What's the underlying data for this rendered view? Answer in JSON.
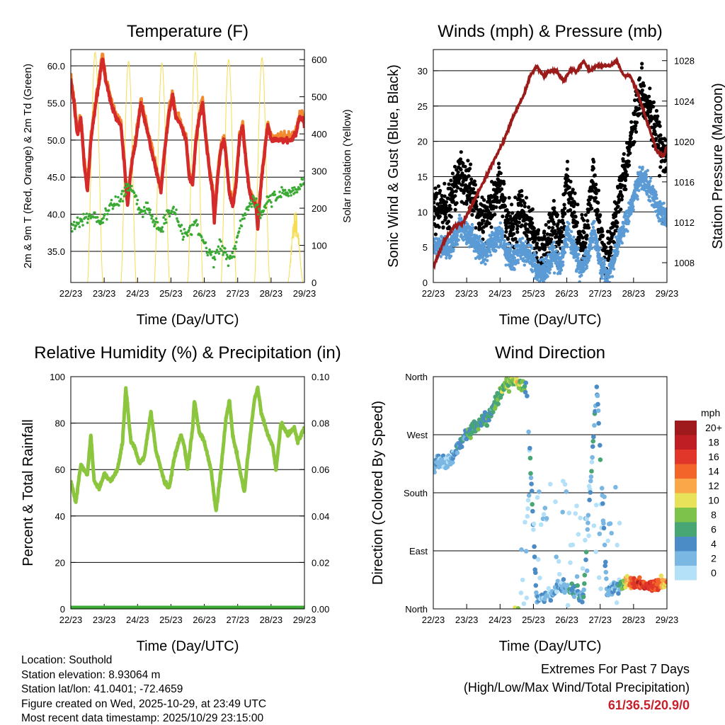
{
  "footer": {
    "location": "Location: Southold",
    "elevation": "Station elevation: 8.93064 m",
    "latlon": "Station lat/lon: 41.0401; -72.4659",
    "created": "Figure created on Wed, 2025-10-29, at 23:49 UTC",
    "recent": "Most recent data timestamp: 2025/10/29 23:15:00",
    "extremes_title": "Extremes For Past 7 Days",
    "extremes_sub": "(High/Low/Max Wind/Total Precipitation)",
    "extremes_value": "61/36.5/20.9/0"
  },
  "colors": {
    "temp_red": "#d42a2a",
    "temp_orange": "#f28a30",
    "dewpoint_green": "#3aaa35",
    "solar_yellow": "#f5dc50",
    "wind_blue": "#5b9bd5",
    "gust_black": "#000000",
    "pressure_maroon": "#9b1b1b",
    "rh_green": "#8cc63f"
  },
  "chart_data": [
    {
      "type": "line",
      "title": "Temperature (F)",
      "xlabel": "Time (Day/UTC)",
      "ylabel": "2m & 9m T (Red, Orange) & 2m Td (Green)",
      "y2label": "Solar Insolation (Yellow)",
      "x_ticks": [
        "22/23",
        "23/23",
        "24/23",
        "25/23",
        "26/23",
        "27/23",
        "28/23",
        "29/23"
      ],
      "y_ticks": [
        "35.0",
        "40.0",
        "45.0",
        "50.0",
        "55.0",
        "60.0"
      ],
      "y2_ticks": [
        "0",
        "100",
        "200",
        "300",
        "400",
        "500",
        "600"
      ],
      "ylim": [
        30.8,
        62.2
      ],
      "y2lim": [
        0,
        627
      ],
      "xlim": [
        0,
        7
      ],
      "series": [
        {
          "name": "2m T",
          "color": "red",
          "x": [
            0,
            0.1,
            0.2,
            0.3,
            0.4,
            0.5,
            0.6,
            0.75,
            0.85,
            0.95,
            1.05,
            1.2,
            1.35,
            1.5,
            1.6,
            1.7,
            1.8,
            1.95,
            2.1,
            2.2,
            2.3,
            2.45,
            2.6,
            2.7,
            2.8,
            2.95,
            3.05,
            3.15,
            3.3,
            3.45,
            3.55,
            3.65,
            3.75,
            3.85,
            3.95,
            4.05,
            4.15,
            4.25,
            4.3,
            4.4,
            4.5,
            4.6,
            4.75,
            4.85,
            4.95,
            5.05,
            5.15,
            5.25,
            5.35,
            5.45,
            5.55,
            5.6,
            5.7,
            5.8,
            5.9,
            6.0,
            6.2,
            6.4,
            6.6,
            6.75,
            6.85,
            6.95,
            7.0
          ],
          "y": [
            58,
            55,
            50.5,
            53,
            47,
            43,
            50,
            55,
            58,
            61,
            58,
            55,
            53,
            52,
            47,
            41,
            46,
            50,
            55,
            53,
            51,
            48,
            45,
            43,
            48,
            54,
            56,
            53,
            52,
            50,
            45,
            44,
            50,
            53,
            55,
            50,
            46,
            43,
            39,
            45,
            49,
            50,
            43,
            41,
            44,
            50,
            52,
            47,
            43,
            42,
            41,
            38,
            44,
            48,
            52,
            50,
            50,
            50,
            50,
            51,
            53,
            53,
            52
          ]
        },
        {
          "name": "2m Td",
          "color": "green",
          "x": [
            0,
            0.3,
            0.6,
            0.9,
            1.2,
            1.5,
            1.7,
            1.9,
            2.1,
            2.3,
            2.5,
            2.7,
            2.9,
            3.1,
            3.3,
            3.5,
            3.7,
            3.9,
            4.1,
            4.3,
            4.5,
            4.7,
            4.9,
            5.1,
            5.3,
            5.5,
            5.7,
            5.9,
            6.1,
            6.3,
            6.5,
            6.7,
            6.9,
            7.0
          ],
          "y": [
            38,
            39,
            40,
            39,
            41,
            42,
            44,
            43,
            40,
            41,
            39,
            38,
            40,
            41,
            38,
            37,
            39,
            37,
            35,
            34,
            36,
            34,
            35,
            39,
            41,
            42,
            40,
            42,
            42,
            43,
            43,
            43,
            44,
            45
          ]
        },
        {
          "name": "Solar insolation daily peak",
          "color": "yellow",
          "x": [
            0.73,
            1.73,
            2.73,
            3.73,
            4.73,
            5.73,
            6.73
          ],
          "y": [
            620,
            595,
            590,
            620,
            600,
            605,
            200
          ]
        }
      ]
    },
    {
      "type": "scatter",
      "title": "Winds (mph) & Pressure (mb)",
      "xlabel": "Time (Day/UTC)",
      "ylabel": "Sonic Wind & Gust (Blue, Black)",
      "y2label": "Station Pressure (Maroon)",
      "x_ticks": [
        "22/23",
        "23/23",
        "24/23",
        "25/23",
        "26/23",
        "27/23",
        "28/23",
        "29/23"
      ],
      "y_ticks": [
        "0",
        "5",
        "10",
        "15",
        "20",
        "25",
        "30"
      ],
      "y2_ticks": [
        "1008",
        "1012",
        "1016",
        "1020",
        "1024",
        "1028"
      ],
      "ylim": [
        0,
        33
      ],
      "y2lim": [
        1006.04,
        1029.1
      ],
      "xlim": [
        0,
        7
      ],
      "series": [
        {
          "name": "Sonic wind",
          "color": "blue",
          "x": [
            0,
            0.5,
            0.8,
            1.2,
            1.5,
            2.0,
            2.2,
            2.4,
            2.6,
            3.0,
            3.2,
            3.4,
            3.6,
            3.8,
            4.0,
            4.2,
            4.4,
            4.6,
            4.8,
            5.0,
            5.2,
            5.4,
            5.6,
            5.8,
            6.0,
            6.2,
            6.4,
            6.6,
            6.8,
            7.0
          ],
          "y": [
            5,
            5,
            8,
            6,
            4,
            7,
            4,
            3,
            5,
            3,
            1,
            2,
            4,
            2,
            7,
            5,
            2,
            3,
            8,
            3,
            0.5,
            3,
            7,
            9,
            12,
            15,
            14,
            12,
            10,
            9
          ]
        },
        {
          "name": "Gust",
          "color": "black",
          "max": 20.9
        },
        {
          "name": "Station pressure",
          "color": "maroon",
          "x": [
            0,
            0.3,
            0.6,
            0.9,
            1.2,
            1.5,
            1.8,
            2.1,
            2.4,
            2.7,
            2.9,
            3.1,
            3.3,
            3.5,
            3.7,
            3.9,
            4.1,
            4.3,
            4.5,
            4.7,
            4.9,
            5.1,
            5.3,
            5.5,
            5.7,
            5.9,
            6.1,
            6.3,
            6.5,
            6.7,
            6.9,
            7.0
          ],
          "y": [
            1007.5,
            1010,
            1011.5,
            1012,
            1014,
            1016,
            1018,
            1020,
            1022.5,
            1024.5,
            1026.5,
            1027.5,
            1026.5,
            1027,
            1027,
            1026,
            1027,
            1027,
            1028,
            1027,
            1027.5,
            1027.5,
            1027.5,
            1028,
            1026.5,
            1026.5,
            1025,
            1023,
            1021,
            1019,
            1018.5,
            1019.5
          ]
        }
      ]
    },
    {
      "type": "line",
      "title": "Relative Humidity (%) & Precipitation (in)",
      "xlabel": "Time (Day/UTC)",
      "ylabel": "Percent & Total Rainfall",
      "x_ticks": [
        "22/23",
        "23/23",
        "24/23",
        "25/23",
        "26/23",
        "27/23",
        "28/23",
        "29/23"
      ],
      "y_ticks": [
        "0",
        "20",
        "40",
        "60",
        "80",
        "100"
      ],
      "y2_ticks": [
        "0.00",
        "0.02",
        "0.04",
        "0.06",
        "0.08",
        "0.10"
      ],
      "ylim": [
        0,
        100
      ],
      "y2lim": [
        0,
        0.1
      ],
      "xlim": [
        0,
        7
      ],
      "series": [
        {
          "name": "Relative humidity",
          "color": "lightgreen",
          "x": [
            0,
            0.15,
            0.3,
            0.5,
            0.6,
            0.7,
            0.85,
            1.0,
            1.2,
            1.4,
            1.55,
            1.65,
            1.8,
            1.9,
            2.05,
            2.2,
            2.4,
            2.55,
            2.8,
            2.95,
            3.1,
            3.3,
            3.4,
            3.5,
            3.65,
            3.7,
            3.85,
            4.0,
            4.2,
            4.35,
            4.5,
            4.65,
            4.75,
            4.85,
            5.0,
            5.2,
            5.3,
            5.5,
            5.6,
            5.7,
            5.9,
            6.05,
            6.15,
            6.3,
            6.5,
            6.7,
            6.8,
            7.0
          ],
          "y": [
            55,
            46,
            62,
            58,
            75,
            55,
            52,
            58,
            55,
            60,
            72,
            95,
            72,
            70,
            63,
            65,
            85,
            68,
            55,
            52,
            65,
            75,
            70,
            60,
            78,
            90,
            76,
            72,
            60,
            42,
            60,
            82,
            90,
            75,
            65,
            50,
            65,
            90,
            95,
            85,
            75,
            70,
            60,
            80,
            75,
            78,
            72,
            78
          ]
        },
        {
          "name": "Total precipitation",
          "color": "green",
          "x": [
            0,
            7
          ],
          "y": [
            0,
            0
          ]
        }
      ]
    },
    {
      "type": "scatter",
      "title": "Wind Direction",
      "xlabel": "Time (Day/UTC)",
      "ylabel": "Direction (Colored By Speed)",
      "x_ticks": [
        "22/23",
        "23/23",
        "24/23",
        "25/23",
        "26/23",
        "27/23",
        "28/23",
        "29/23"
      ],
      "y_ticks": [
        "North",
        "East",
        "South",
        "West",
        "North"
      ],
      "ylim": [
        0,
        360
      ],
      "xlim": [
        0,
        7
      ],
      "legend": {
        "title": "mph",
        "labels": [
          "20+",
          "18",
          "16",
          "14",
          "12",
          "10",
          "8",
          "6",
          "4",
          "2",
          "0"
        ],
        "colors": [
          "#9e1a1d",
          "#be1e24",
          "#e0372a",
          "#f26429",
          "#f9a748",
          "#e8e15a",
          "#7dc24b",
          "#47a674",
          "#4b8bc6",
          "#7ab7e3",
          "#b4e1f7"
        ]
      },
      "series": [
        {
          "name": "Direction (deg)",
          "x": [
            0,
            0.5,
            0.9,
            1.3,
            1.6,
            1.9,
            2.2,
            2.5,
            2.8,
            3.1,
            3.5,
            3.8,
            4.2,
            4.5,
            4.9,
            5.2,
            5.6,
            6.0,
            6.5,
            7.0
          ],
          "y": [
            225,
            230,
            265,
            285,
            295,
            325,
            350,
            355,
            340,
            15,
            20,
            35,
            25,
            20,
            350,
            25,
            40,
            40,
            35,
            40
          ],
          "speed": [
            3,
            3,
            6,
            7,
            6,
            7,
            9,
            11,
            5,
            4,
            3,
            3,
            6,
            5,
            4,
            3,
            6,
            16,
            18,
            12
          ]
        }
      ]
    }
  ]
}
